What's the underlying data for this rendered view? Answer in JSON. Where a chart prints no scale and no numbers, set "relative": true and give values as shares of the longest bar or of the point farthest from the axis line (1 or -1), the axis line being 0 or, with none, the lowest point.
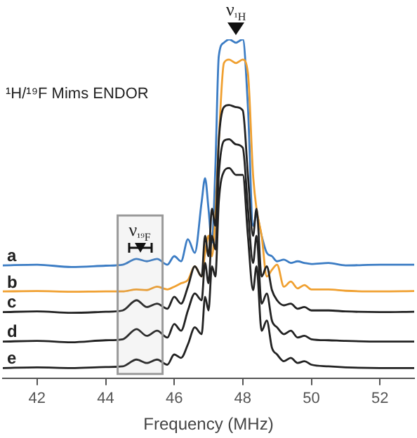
{
  "chart_data": {
    "type": "line",
    "relative": true,
    "xlabel": "Frequency (MHz)",
    "xlim": [
      41,
      53
    ],
    "xticks": [
      42,
      44,
      46,
      48,
      50,
      52
    ],
    "grid": false,
    "legend": false,
    "annotations": [
      "¹H/¹⁹F Mims ENDOR",
      {
        "text": "ν$_{¹H}$",
        "x": 47.8,
        "y": 1
      }
    ],
    "bands": [
      {
        "axis": "x",
        "from": 44.35,
        "to": 45.66,
        "label": "ν$_{¹⁹F}$",
        "color": "#9a9a9a"
      }
    ],
    "x": [
      41,
      42,
      43,
      44,
      44.5,
      44.9,
      45.2,
      45.5,
      45.8,
      46.0,
      46.2,
      46.4,
      46.6,
      46.8,
      46.9,
      47.0,
      47.1,
      47.2,
      47.3,
      47.45,
      47.6,
      47.8,
      48.0,
      48.15,
      48.3,
      48.4,
      48.55,
      48.7,
      48.85,
      49.0,
      49.2,
      49.4,
      49.6,
      49.8,
      50.0,
      50.5,
      51,
      52,
      53
    ],
    "series": [
      {
        "name": "a",
        "color": "#3b7cc4",
        "values": [
          0.333,
          0.335,
          0.328,
          0.332,
          0.335,
          0.352,
          0.345,
          0.352,
          0.335,
          0.36,
          0.345,
          0.41,
          0.37,
          0.52,
          0.59,
          0.5,
          0.4,
          0.62,
          0.95,
          0.99,
          1.0,
          0.99,
          1.0,
          0.8,
          0.45,
          0.48,
          0.42,
          0.37,
          0.36,
          0.345,
          0.35,
          0.34,
          0.345,
          0.34,
          0.337,
          0.34,
          0.333,
          0.335,
          0.335
        ]
      },
      {
        "name": "b",
        "color": "#f0a030",
        "values": [
          0.256,
          0.257,
          0.255,
          0.256,
          0.256,
          0.262,
          0.26,
          0.27,
          0.262,
          0.27,
          0.28,
          0.29,
          0.33,
          0.3,
          0.37,
          0.42,
          0.36,
          0.48,
          0.7,
          0.93,
          0.94,
          0.93,
          0.94,
          0.9,
          0.6,
          0.5,
          0.42,
          0.3,
          0.32,
          0.335,
          0.27,
          0.285,
          0.265,
          0.275,
          0.262,
          0.262,
          0.258,
          0.256,
          0.257
        ]
      },
      {
        "name": "c",
        "color": "#222222",
        "values": [
          0.195,
          0.197,
          0.193,
          0.196,
          0.2,
          0.23,
          0.21,
          0.22,
          0.205,
          0.24,
          0.22,
          0.27,
          0.33,
          0.3,
          0.42,
          0.36,
          0.5,
          0.45,
          0.7,
          0.8,
          0.806,
          0.8,
          0.79,
          0.6,
          0.42,
          0.5,
          0.3,
          0.33,
          0.26,
          0.23,
          0.215,
          0.22,
          0.205,
          0.21,
          0.2,
          0.2,
          0.197,
          0.195,
          0.196
        ]
      },
      {
        "name": "d",
        "color": "#222222",
        "values": [
          0.108,
          0.11,
          0.106,
          0.112,
          0.115,
          0.145,
          0.125,
          0.14,
          0.12,
          0.16,
          0.14,
          0.2,
          0.25,
          0.23,
          0.34,
          0.28,
          0.42,
          0.38,
          0.6,
          0.7,
          0.705,
          0.69,
          0.68,
          0.5,
          0.34,
          0.42,
          0.22,
          0.25,
          0.17,
          0.15,
          0.13,
          0.14,
          0.12,
          0.125,
          0.115,
          0.112,
          0.11,
          0.108,
          0.108
        ]
      },
      {
        "name": "e",
        "color": "#222222",
        "values": [
          0.03,
          0.032,
          0.03,
          0.033,
          0.035,
          0.055,
          0.045,
          0.055,
          0.04,
          0.07,
          0.06,
          0.1,
          0.15,
          0.13,
          0.24,
          0.2,
          0.33,
          0.3,
          0.52,
          0.61,
          0.62,
          0.6,
          0.6,
          0.42,
          0.26,
          0.33,
          0.14,
          0.17,
          0.09,
          0.07,
          0.05,
          0.06,
          0.045,
          0.05,
          0.04,
          0.035,
          0.032,
          0.03,
          0.03
        ]
      }
    ]
  }
}
